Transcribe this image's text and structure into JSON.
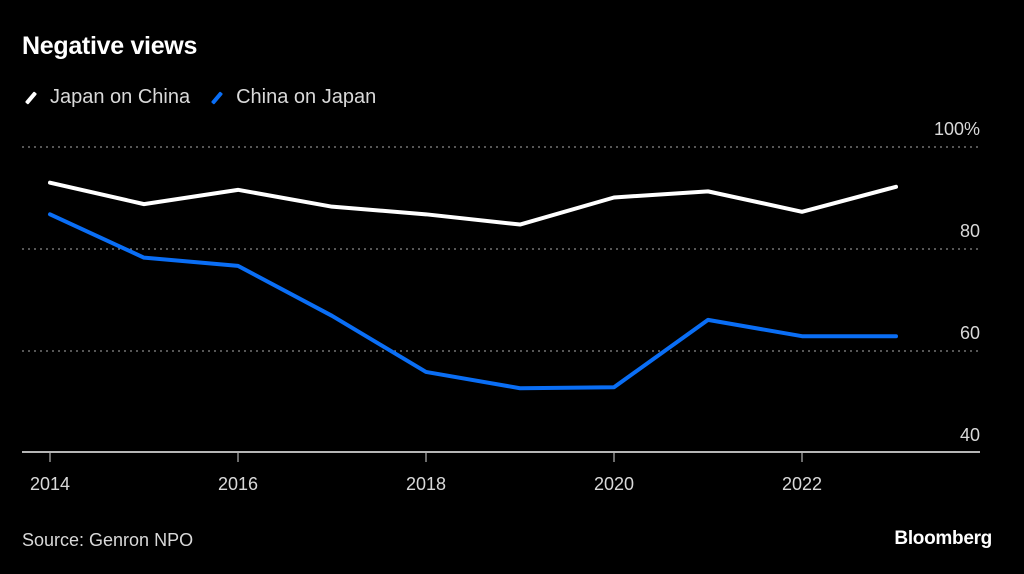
{
  "chart_data": {
    "type": "line",
    "title": "Negative views",
    "xlabel": "",
    "ylabel": "",
    "x": [
      2014,
      2015,
      2016,
      2017,
      2018,
      2019,
      2020,
      2021,
      2022,
      2023
    ],
    "series": [
      {
        "name": "Japan on China",
        "color": "#ffffff",
        "values": [
          93.0,
          88.8,
          91.6,
          88.3,
          86.8,
          84.8,
          90.1,
          91.3,
          87.3,
          92.2
        ]
      },
      {
        "name": "China on Japan",
        "color": "#0a6ef5",
        "values": [
          86.8,
          78.3,
          76.7,
          66.9,
          55.9,
          52.7,
          52.9,
          66.1,
          62.9,
          62.9
        ]
      }
    ],
    "xticks": [
      "2014",
      "2016",
      "2018",
      "2020",
      "2022"
    ],
    "yticks": [
      {
        "value": 100,
        "label": "100%"
      },
      {
        "value": 80,
        "label": "80"
      },
      {
        "value": 60,
        "label": "60"
      },
      {
        "value": 40,
        "label": "40"
      }
    ],
    "ylim": [
      40,
      100
    ],
    "xlim": [
      2014,
      2023
    ],
    "grid": true,
    "legend_position": "top-left",
    "source": "Source: Genron NPO",
    "brand": "Bloomberg"
  }
}
